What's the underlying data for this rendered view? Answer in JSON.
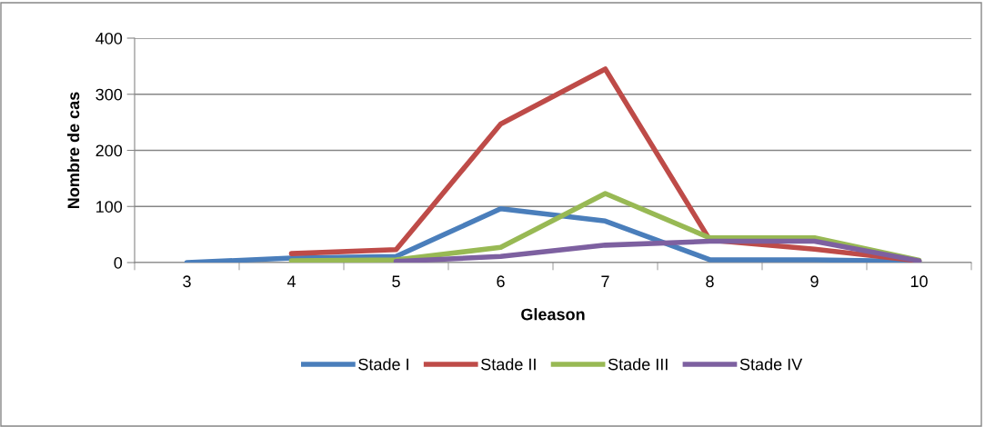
{
  "chart_data": {
    "type": "line",
    "xlabel": "Gleason",
    "ylabel": "Nombre de cas",
    "categories": [
      "3",
      "4",
      "5",
      "6",
      "7",
      "8",
      "9",
      "10"
    ],
    "series": [
      {
        "name": "Stade I",
        "color": "#4a7ebb",
        "values": [
          0,
          8,
          11,
          96,
          74,
          5,
          5,
          2
        ]
      },
      {
        "name": "Stade II",
        "color": "#be4b48",
        "values": [
          null,
          16,
          23,
          247,
          345,
          40,
          24,
          3
        ]
      },
      {
        "name": "Stade III",
        "color": "#98b954",
        "values": [
          null,
          3,
          5,
          27,
          123,
          44,
          44,
          4
        ]
      },
      {
        "name": "Stade IV",
        "color": "#7d60a0",
        "values": [
          null,
          null,
          2,
          11,
          31,
          38,
          38,
          3
        ]
      }
    ],
    "ylim": [
      0,
      400
    ],
    "yticks": [
      0,
      100,
      200,
      300,
      400
    ],
    "grid": "y",
    "legend": "bottom",
    "marker": "none",
    "line_style": "solid"
  }
}
